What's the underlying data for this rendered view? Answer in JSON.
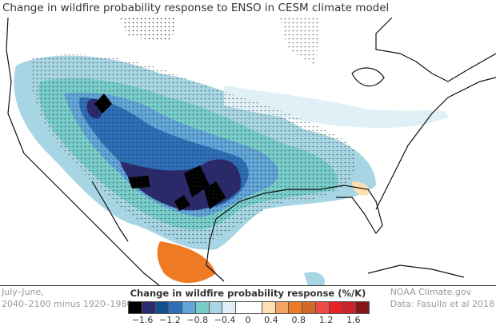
{
  "title": "Change in wildfire probability response to ENSO in CESM climate model",
  "notes_left": [
    "July–June,",
    "2040–2100 minus 1920–1980"
  ],
  "notes_right": [
    "NOAA Climate.gov",
    "Data: Fasullo et al 2018"
  ],
  "legend": {
    "title": "Change in wildfire probability response (%/K)",
    "colors": [
      "#000000",
      "#2b2a6e",
      "#134f8a",
      "#2f6fb8",
      "#62a5d9",
      "#77cdc9",
      "#a7d5e3",
      "#dff0f6",
      "#ffffff",
      "#fde0b2",
      "#f4a462",
      "#ee7a24",
      "#d2692a",
      "#ee4a4a",
      "#e82026",
      "#cd2029",
      "#85161a"
    ],
    "ticks": [
      "−1.6",
      "−1.2",
      "−0.8",
      "−0.4",
      "0",
      "0.4",
      "0.8",
      "1.2",
      "1.6"
    ]
  }
}
